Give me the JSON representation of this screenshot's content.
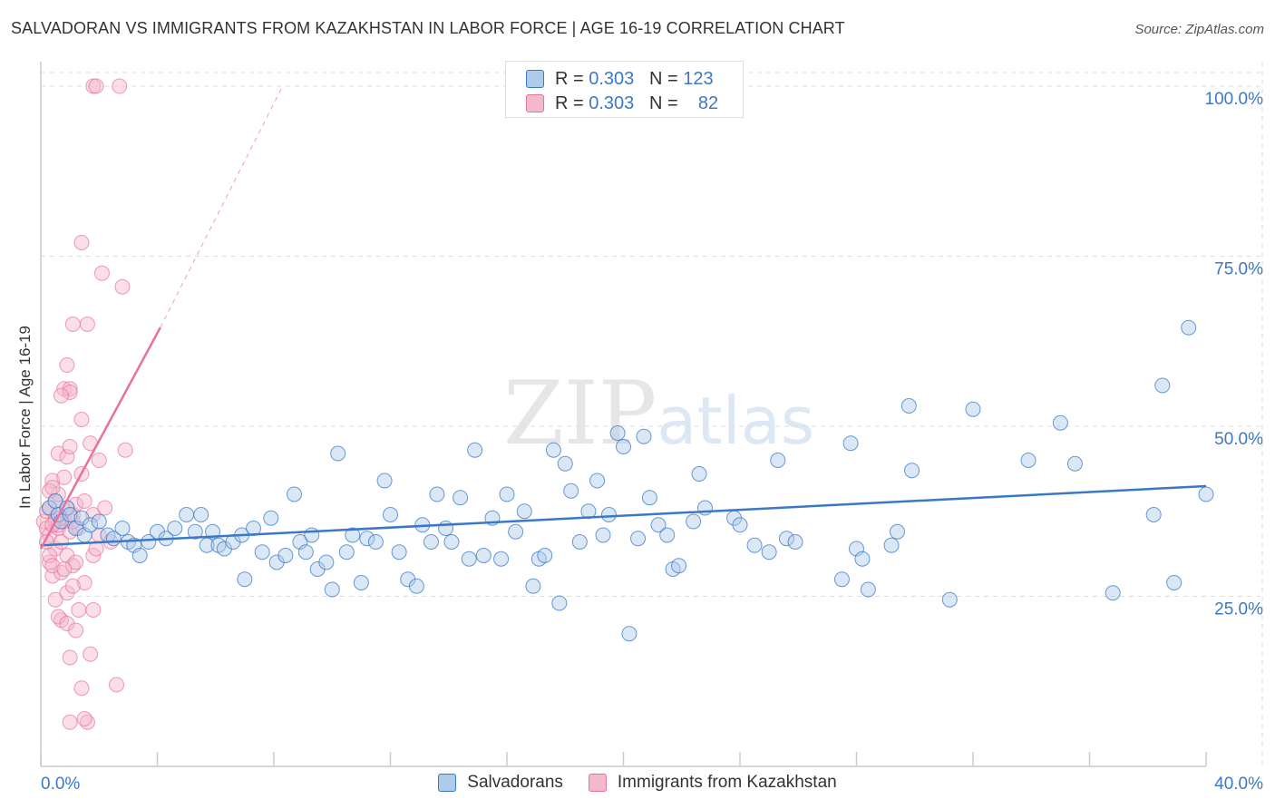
{
  "title": "SALVADORAN VS IMMIGRANTS FROM KAZAKHSTAN IN LABOR FORCE | AGE 16-19 CORRELATION CHART",
  "source": "Source: ZipAtlas.com",
  "watermark": {
    "zip": "ZIP",
    "atlas": "atlas"
  },
  "legend": {
    "rows": [
      {
        "r_label": "R =",
        "r_value": "0.303",
        "n_label": "N =",
        "n_value": "123"
      },
      {
        "r_label": "R =",
        "r_value": "0.303",
        "n_label": "N =",
        "n_value": "82"
      }
    ]
  },
  "bottom_legend": [
    "Salvadorans",
    "Immigrants from Kazakhstan"
  ],
  "colors": {
    "blue": "#3b78c8",
    "blue_fill": "#aecbec",
    "pink": "#e8729c",
    "pink_fill": "#f5b9cc",
    "grid": "#dddddd"
  },
  "chart_data": {
    "type": "scatter",
    "title": "SALVADORAN VS IMMIGRANTS FROM KAZAKHSTAN IN LABOR FORCE | AGE 16-19 CORRELATION CHART",
    "xlabel": "",
    "ylabel": "In Labor Force | Age 16-19",
    "xlim": [
      0,
      40
    ],
    "ylim": [
      0,
      102
    ],
    "x_tick_labels": [
      "0.0%",
      "40.0%"
    ],
    "y_ticks": [
      25,
      50,
      75,
      100
    ],
    "y_tick_labels": [
      "25.0%",
      "50.0%",
      "75.0%",
      "100.0%"
    ],
    "series": [
      {
        "name": "Salvadorans",
        "color": "#3b78c8",
        "r": "0.303",
        "n": "123",
        "trend": {
          "x": [
            0,
            40
          ],
          "y": [
            32.5,
            41.2
          ]
        },
        "points": [
          [
            0.3,
            38
          ],
          [
            0.5,
            39
          ],
          [
            0.6,
            37
          ],
          [
            0.7,
            36
          ],
          [
            0.9,
            38
          ],
          [
            1,
            37
          ],
          [
            1.2,
            35
          ],
          [
            1.4,
            36.5
          ],
          [
            1.5,
            34
          ],
          [
            1.7,
            35.5
          ],
          [
            2.0,
            36
          ],
          [
            2.3,
            34
          ],
          [
            2.5,
            33.5
          ],
          [
            2.8,
            35
          ],
          [
            3.0,
            33
          ],
          [
            3.2,
            32.5
          ],
          [
            3.4,
            31
          ],
          [
            3.7,
            33
          ],
          [
            4.0,
            34.5
          ],
          [
            4.3,
            33.5
          ],
          [
            4.6,
            35
          ],
          [
            5.0,
            37
          ],
          [
            5.3,
            34.5
          ],
          [
            5.5,
            37
          ],
          [
            5.7,
            32.5
          ],
          [
            5.9,
            34.5
          ],
          [
            6.1,
            32.5
          ],
          [
            6.3,
            32
          ],
          [
            6.6,
            33
          ],
          [
            6.9,
            34
          ],
          [
            7.0,
            27.5
          ],
          [
            7.3,
            35
          ],
          [
            7.6,
            31.5
          ],
          [
            7.9,
            36.5
          ],
          [
            8.1,
            30
          ],
          [
            8.4,
            31
          ],
          [
            8.7,
            40
          ],
          [
            8.9,
            33
          ],
          [
            9.1,
            31.5
          ],
          [
            9.3,
            34
          ],
          [
            9.5,
            29
          ],
          [
            9.8,
            30
          ],
          [
            10.0,
            26
          ],
          [
            10.2,
            46
          ],
          [
            10.5,
            31.5
          ],
          [
            10.7,
            34
          ],
          [
            11.0,
            27
          ],
          [
            11.2,
            33.5
          ],
          [
            11.5,
            33
          ],
          [
            11.8,
            42
          ],
          [
            12.0,
            37
          ],
          [
            12.3,
            31.5
          ],
          [
            12.6,
            27.5
          ],
          [
            12.9,
            26.5
          ],
          [
            13.1,
            35.5
          ],
          [
            13.4,
            33
          ],
          [
            13.6,
            40
          ],
          [
            13.9,
            35
          ],
          [
            14.1,
            33
          ],
          [
            14.4,
            39.5
          ],
          [
            14.7,
            30.5
          ],
          [
            14.9,
            46.5
          ],
          [
            15.2,
            31
          ],
          [
            15.5,
            36.5
          ],
          [
            15.8,
            30.5
          ],
          [
            16.0,
            40
          ],
          [
            16.3,
            34.5
          ],
          [
            16.6,
            37.5
          ],
          [
            16.9,
            26.5
          ],
          [
            17.1,
            30.5
          ],
          [
            17.3,
            31
          ],
          [
            17.6,
            46.5
          ],
          [
            17.8,
            24
          ],
          [
            18.0,
            44.5
          ],
          [
            18.2,
            40.5
          ],
          [
            18.5,
            33
          ],
          [
            18.8,
            37.5
          ],
          [
            19.1,
            42
          ],
          [
            19.3,
            34
          ],
          [
            19.5,
            37
          ],
          [
            19.8,
            49
          ],
          [
            20.0,
            47
          ],
          [
            20.2,
            19.5
          ],
          [
            20.5,
            33.5
          ],
          [
            20.7,
            48.5
          ],
          [
            20.9,
            39.5
          ],
          [
            21.2,
            35.5
          ],
          [
            21.5,
            34
          ],
          [
            21.7,
            29
          ],
          [
            21.9,
            29.5
          ],
          [
            22.4,
            36
          ],
          [
            22.6,
            43
          ],
          [
            22.8,
            38
          ],
          [
            23.8,
            36.5
          ],
          [
            24.0,
            35.5
          ],
          [
            24.5,
            32.5
          ],
          [
            25.0,
            31.5
          ],
          [
            25.3,
            45
          ],
          [
            25.6,
            33.5
          ],
          [
            25.9,
            33
          ],
          [
            27.5,
            27.5
          ],
          [
            27.8,
            47.5
          ],
          [
            28.0,
            32
          ],
          [
            28.2,
            30.5
          ],
          [
            28.4,
            26
          ],
          [
            29.2,
            32.5
          ],
          [
            29.4,
            34.5
          ],
          [
            29.8,
            53
          ],
          [
            29.9,
            43.5
          ],
          [
            31.2,
            24.5
          ],
          [
            32.0,
            52.5
          ],
          [
            33.9,
            45
          ],
          [
            35.0,
            50.5
          ],
          [
            35.5,
            44.5
          ],
          [
            36.8,
            25.5
          ],
          [
            38.2,
            37
          ],
          [
            38.5,
            56
          ],
          [
            38.9,
            27
          ],
          [
            39.4,
            64.5
          ],
          [
            40.0,
            40
          ]
        ]
      },
      {
        "name": "Immigrants from Kazakhstan",
        "color": "#e8729c",
        "r": "0.303",
        "n": "82",
        "trend": {
          "x": [
            0,
            4.1
          ],
          "y": [
            32,
            64.5
          ]
        },
        "trend_extension": {
          "x": [
            4.1,
            8.3
          ],
          "y": [
            64.5,
            100
          ]
        },
        "points": [
          [
            0.1,
            36
          ],
          [
            0.2,
            37.5
          ],
          [
            0.2,
            35
          ],
          [
            0.3,
            38
          ],
          [
            0.3,
            34
          ],
          [
            0.3,
            30
          ],
          [
            0.4,
            42
          ],
          [
            0.4,
            28
          ],
          [
            0.5,
            39
          ],
          [
            0.5,
            36.5
          ],
          [
            0.5,
            32
          ],
          [
            0.6,
            46
          ],
          [
            0.6,
            40
          ],
          [
            0.6,
            35
          ],
          [
            0.7,
            33
          ],
          [
            0.7,
            28.5
          ],
          [
            0.7,
            21.5
          ],
          [
            0.8,
            55.5
          ],
          [
            0.8,
            42.5
          ],
          [
            0.8,
            36
          ],
          [
            0.9,
            45.5
          ],
          [
            0.9,
            38
          ],
          [
            0.9,
            31
          ],
          [
            0.9,
            25.5
          ],
          [
            1.0,
            55.5
          ],
          [
            1.0,
            47
          ],
          [
            1.0,
            34.5
          ],
          [
            1.1,
            37
          ],
          [
            1.1,
            29.5
          ],
          [
            1.2,
            38.5
          ],
          [
            1.2,
            30
          ],
          [
            1.3,
            35
          ],
          [
            1.4,
            77
          ],
          [
            1.4,
            51
          ],
          [
            1.4,
            43
          ],
          [
            1.5,
            39
          ],
          [
            1.5,
            27
          ],
          [
            1.6,
            65
          ],
          [
            1.7,
            47.5
          ],
          [
            1.8,
            37
          ],
          [
            1.8,
            31
          ],
          [
            2.0,
            45
          ],
          [
            2.0,
            34
          ],
          [
            0.3,
            40.5
          ],
          [
            0.4,
            41
          ],
          [
            0.5,
            36
          ],
          [
            0.6,
            35.5
          ],
          [
            0.7,
            36.5
          ],
          [
            0.9,
            59
          ],
          [
            1.0,
            55
          ],
          [
            1.1,
            36
          ],
          [
            0.2,
            33
          ],
          [
            0.3,
            31
          ],
          [
            0.4,
            29.5
          ],
          [
            0.5,
            24.5
          ],
          [
            0.6,
            22
          ],
          [
            0.8,
            29
          ],
          [
            0.9,
            21
          ],
          [
            1.0,
            16
          ],
          [
            1.1,
            26.5
          ],
          [
            1.2,
            20
          ],
          [
            1.3,
            23
          ],
          [
            1.4,
            11.5
          ],
          [
            1.6,
            6.5
          ],
          [
            1.7,
            16.5
          ],
          [
            1.8,
            23
          ],
          [
            1.9,
            32
          ],
          [
            2.1,
            72.5
          ],
          [
            2.2,
            38
          ],
          [
            2.4,
            33
          ],
          [
            2.6,
            12
          ],
          [
            2.8,
            70.5
          ],
          [
            2.9,
            46.5
          ],
          [
            1.8,
            100
          ],
          [
            1.9,
            100
          ],
          [
            2.7,
            100
          ],
          [
            1.0,
            6.5
          ],
          [
            1.5,
            7
          ],
          [
            1.1,
            65
          ],
          [
            0.7,
            54.5
          ],
          [
            0.4,
            35.5
          ],
          [
            0.6,
            37
          ]
        ]
      }
    ]
  }
}
